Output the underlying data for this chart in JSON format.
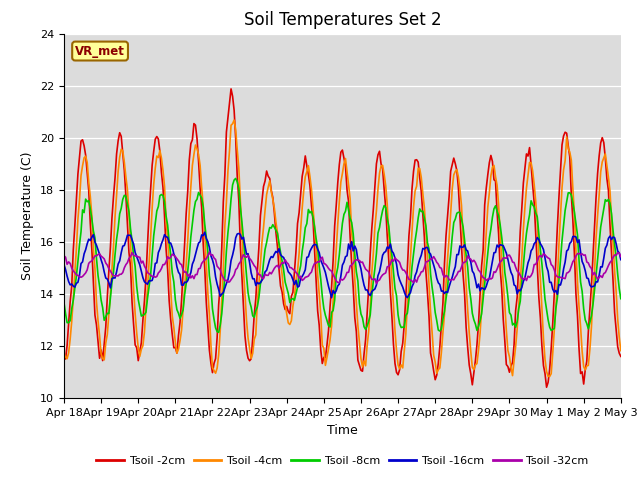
{
  "title": "Soil Temperatures Set 2",
  "xlabel": "Time",
  "ylabel": "Soil Temperature (C)",
  "ylim": [
    10,
    24
  ],
  "yticks": [
    10,
    12,
    14,
    16,
    18,
    20,
    22,
    24
  ],
  "xtick_labels": [
    "Apr 18",
    "Apr 19",
    "Apr 20",
    "Apr 21",
    "Apr 22",
    "Apr 23",
    "Apr 24",
    "Apr 25",
    "Apr 26",
    "Apr 27",
    "Apr 28",
    "Apr 29",
    "Apr 30",
    "May 1",
    "May 2",
    "May 3"
  ],
  "series_colors": [
    "#dd0000",
    "#ff8800",
    "#00cc00",
    "#0000cc",
    "#aa00aa"
  ],
  "series_labels": [
    "Tsoil -2cm",
    "Tsoil -4cm",
    "Tsoil -8cm",
    "Tsoil -16cm",
    "Tsoil -32cm"
  ],
  "line_width": 1.2,
  "annotation_text": "VR_met",
  "plot_bg_color": "#dcdcdc",
  "title_fontsize": 12,
  "label_fontsize": 9,
  "tick_fontsize": 8
}
